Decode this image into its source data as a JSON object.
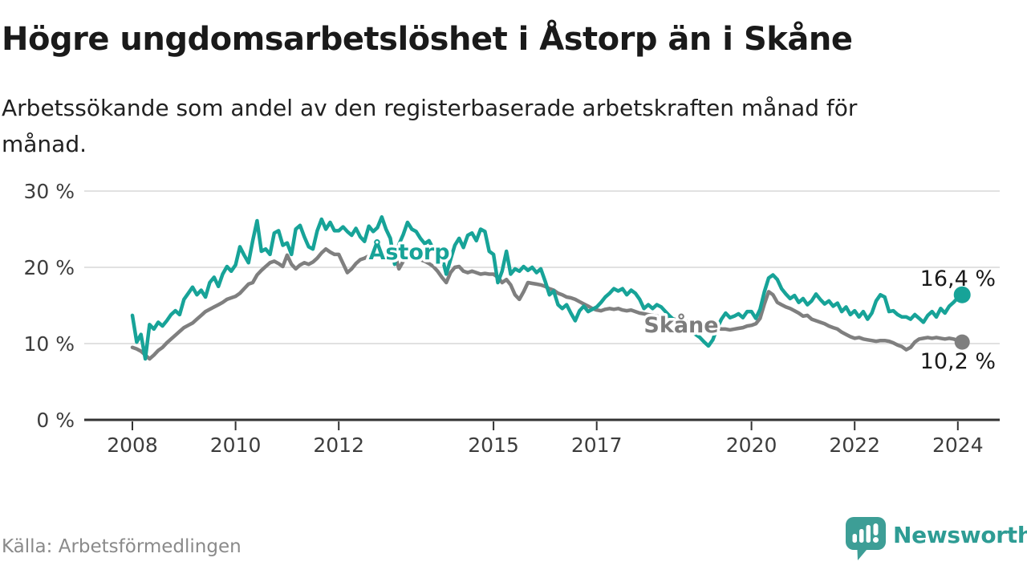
{
  "header": {
    "title": "Högre ungdomsarbetslöshet i Åstorp än i Skåne",
    "subtitle_lines": [
      "Arbetssökande som andel av den registerbaserade arbetskraften månad för",
      "månad."
    ]
  },
  "chart": {
    "y_axis": {
      "ticks": [
        {
          "value": 0,
          "label": "0 %"
        },
        {
          "value": 10,
          "label": "10 %"
        },
        {
          "value": 20,
          "label": "20 %"
        },
        {
          "value": 30,
          "label": "30 %"
        }
      ]
    },
    "x_axis": {
      "ticks": [
        {
          "year": 2008,
          "label": "2008"
        },
        {
          "year": 2010,
          "label": "2010"
        },
        {
          "year": 2012,
          "label": "2012"
        },
        {
          "year": 2015,
          "label": "2015"
        },
        {
          "year": 2017,
          "label": "2017"
        },
        {
          "year": 2020,
          "label": "2020"
        },
        {
          "year": 2022,
          "label": "2022"
        },
        {
          "year": 2024,
          "label": "2024"
        }
      ]
    },
    "series_labels": {
      "astorp": "Åstorp",
      "skane": "Skåne"
    },
    "end_labels": {
      "astorp": "16,4 %",
      "skane": "10,2 %"
    },
    "colors": {
      "astorp": "#17a398",
      "skane": "#7f7f7f",
      "grid": "#e1e1e1",
      "axis": "#333333",
      "axis_text": "#3d3d3d",
      "end_label_text": "#1a1a1a"
    }
  },
  "chart_data": {
    "type": "line",
    "x_start": "2008-01",
    "x_end": "2024-02",
    "x_step": "1 month",
    "ylim": [
      0,
      30
    ],
    "grid": "horizontal",
    "legend": "inline-labels",
    "title": "Högre ungdomsarbetslöshet i Åstorp än i Skåne",
    "xlabel": "",
    "ylabel": "Arbetssökande som andel av den registerbaserade arbetskraften (%)",
    "series": [
      {
        "name": "Åstorp",
        "color": "#17a398",
        "end_value_label": "16,4 %",
        "values": [
          13.7,
          10.2,
          11.2,
          8.0,
          12.5,
          11.9,
          12.8,
          12.3,
          13.0,
          13.8,
          14.3,
          13.8,
          15.8,
          16.6,
          17.4,
          16.4,
          17.0,
          16.1,
          18.0,
          18.7,
          17.5,
          19.1,
          20.1,
          19.5,
          20.3,
          22.7,
          21.6,
          20.6,
          23.5,
          26.1,
          22.1,
          22.4,
          21.7,
          24.5,
          24.8,
          22.9,
          23.2,
          21.7,
          25.0,
          25.5,
          24.0,
          22.7,
          22.4,
          24.8,
          26.3,
          25.0,
          25.9,
          24.8,
          24.8,
          25.3,
          24.7,
          24.2,
          25.1,
          24.0,
          23.4,
          25.4,
          24.7,
          25.2,
          26.6,
          25.0,
          23.8,
          20.4,
          23.0,
          24.3,
          25.9,
          25.0,
          24.7,
          23.8,
          23.1,
          23.5,
          22.4,
          21.8,
          21.4,
          19.1,
          21.0,
          22.9,
          23.8,
          22.6,
          24.2,
          24.5,
          23.5,
          25.0,
          24.7,
          22.1,
          21.7,
          18.0,
          19.5,
          22.1,
          19.1,
          19.8,
          19.5,
          20.1,
          19.6,
          20.0,
          19.3,
          19.8,
          18.2,
          16.4,
          16.9,
          15.1,
          14.6,
          15.1,
          14.0,
          13.0,
          14.3,
          14.9,
          14.2,
          14.5,
          14.8,
          15.4,
          16.1,
          16.6,
          17.2,
          16.9,
          17.2,
          16.4,
          17.0,
          16.6,
          15.8,
          14.6,
          15.1,
          14.6,
          15.1,
          14.8,
          14.2,
          13.6,
          13.1,
          12.7,
          12.3,
          12.0,
          11.6,
          11.2,
          10.8,
          10.2,
          9.7,
          10.5,
          12.0,
          13.2,
          14.0,
          13.4,
          13.6,
          13.9,
          13.4,
          14.2,
          14.2,
          13.3,
          14.5,
          16.8,
          18.6,
          19.0,
          18.4,
          17.2,
          16.5,
          15.9,
          16.3,
          15.4,
          15.9,
          15.1,
          15.6,
          16.5,
          15.8,
          15.2,
          15.6,
          14.9,
          15.3,
          14.2,
          14.8,
          13.8,
          14.3,
          13.5,
          14.2,
          13.2,
          14.0,
          15.6,
          16.4,
          16.1,
          14.2,
          14.3,
          13.8,
          13.5,
          13.5,
          13.2,
          13.8,
          13.3,
          12.8,
          13.7,
          14.2,
          13.5,
          14.6,
          14.0,
          14.9,
          15.4,
          16.0,
          16.4
        ]
      },
      {
        "name": "Skåne",
        "color": "#7f7f7f",
        "end_value_label": "10,2 %",
        "values": [
          9.5,
          9.3,
          9.0,
          8.5,
          8.0,
          8.5,
          9.1,
          9.5,
          10.1,
          10.6,
          11.1,
          11.6,
          12.1,
          12.4,
          12.7,
          13.2,
          13.7,
          14.2,
          14.5,
          14.8,
          15.1,
          15.4,
          15.8,
          16.0,
          16.2,
          16.6,
          17.2,
          17.8,
          18.0,
          19.0,
          19.6,
          20.1,
          20.6,
          20.8,
          20.5,
          20.1,
          21.6,
          20.4,
          19.8,
          20.3,
          20.6,
          20.4,
          20.7,
          21.2,
          21.9,
          22.4,
          22.0,
          21.7,
          21.7,
          20.5,
          19.3,
          19.8,
          20.5,
          21.0,
          21.2,
          21.5,
          21.8,
          22.0,
          22.3,
          22.1,
          22.3,
          21.8,
          19.8,
          20.8,
          21.7,
          21.5,
          21.2,
          21.0,
          20.8,
          20.5,
          20.1,
          19.5,
          18.7,
          18.0,
          19.3,
          20.0,
          20.1,
          19.5,
          19.3,
          19.5,
          19.3,
          19.1,
          19.2,
          19.1,
          19.1,
          18.7,
          18.0,
          18.4,
          17.7,
          16.4,
          15.8,
          16.8,
          18.0,
          17.9,
          17.8,
          17.7,
          17.5,
          17.2,
          17.0,
          16.6,
          16.4,
          16.1,
          16.0,
          15.8,
          15.5,
          15.2,
          14.9,
          14.6,
          14.4,
          14.3,
          14.5,
          14.6,
          14.5,
          14.6,
          14.4,
          14.3,
          14.4,
          14.2,
          14.0,
          13.9,
          13.8,
          13.7,
          13.6,
          13.5,
          13.4,
          13.3,
          13.2,
          13.1,
          13.0,
          12.9,
          12.8,
          12.7,
          12.6,
          12.4,
          12.3,
          12.2,
          12.0,
          11.9,
          11.9,
          11.8,
          11.9,
          12.0,
          12.1,
          12.3,
          12.4,
          12.6,
          13.3,
          15.2,
          16.8,
          16.4,
          15.4,
          15.1,
          14.8,
          14.6,
          14.3,
          14.0,
          13.6,
          13.7,
          13.2,
          13.0,
          12.8,
          12.6,
          12.3,
          12.1,
          11.9,
          11.5,
          11.2,
          10.9,
          10.7,
          10.8,
          10.6,
          10.5,
          10.4,
          10.3,
          10.4,
          10.4,
          10.3,
          10.1,
          9.8,
          9.6,
          9.2,
          9.5,
          10.2,
          10.6,
          10.7,
          10.8,
          10.7,
          10.8,
          10.7,
          10.6,
          10.7,
          10.6,
          10.4,
          10.2
        ]
      }
    ]
  },
  "footer": {
    "source": "Källa: Arbetsförmedlingen",
    "brand": "Newsworthy"
  }
}
